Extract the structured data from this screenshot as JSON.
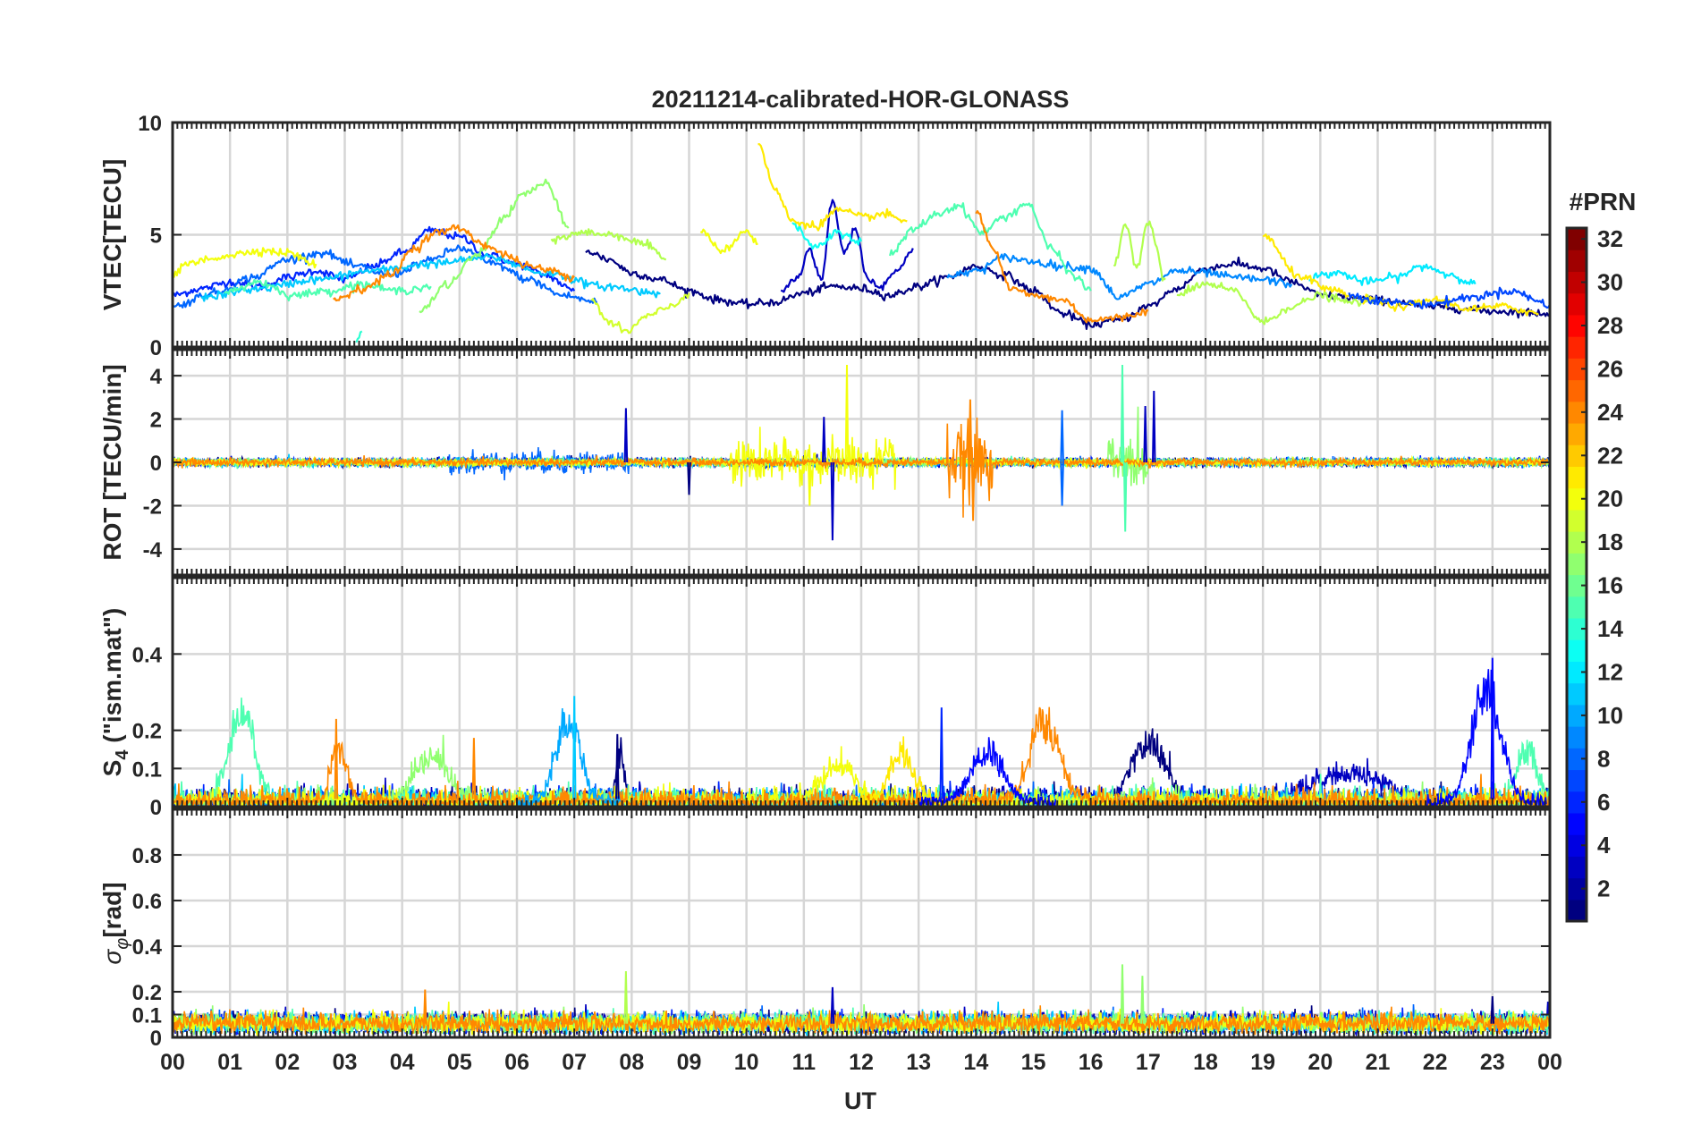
{
  "chart_data": {
    "type": "line",
    "title": "20211214-calibrated-HOR-GLONASS",
    "xlabel": "UT",
    "xlim": [
      0,
      24
    ],
    "x_tick_labels": [
      "00",
      "01",
      "02",
      "03",
      "04",
      "05",
      "06",
      "07",
      "08",
      "09",
      "10",
      "11",
      "12",
      "13",
      "14",
      "15",
      "16",
      "17",
      "18",
      "19",
      "20",
      "21",
      "22",
      "23",
      "00"
    ],
    "grid": true,
    "colorbar": {
      "label": "#PRN",
      "range": [
        1,
        32
      ],
      "colormap": "jet",
      "tick_labels": [
        "2",
        "4",
        "6",
        "8",
        "10",
        "12",
        "14",
        "16",
        "18",
        "20",
        "22",
        "24",
        "26",
        "28",
        "30",
        "32"
      ],
      "placement": "right"
    },
    "panels": [
      {
        "id": "vtec",
        "ylabel": "VTEC[TECU]",
        "ylim": [
          0,
          10
        ],
        "y_ticks": [
          0,
          5,
          10
        ],
        "y_tick_labels": [
          "0",
          "5",
          "10"
        ],
        "tracks": [
          {
            "prn": 6,
            "x": [
              0.0,
              0.5,
              1.0,
              1.5,
              2.0,
              2.5,
              3.0,
              3.5,
              4.0,
              4.5,
              5.0,
              5.5,
              6.0,
              6.5,
              7.0
            ],
            "y": [
              2.3,
              2.6,
              2.9,
              2.7,
              3.1,
              3.4,
              3.0,
              3.6,
              4.2,
              5.2,
              4.9,
              4.1,
              3.7,
              3.2,
              2.5
            ]
          },
          {
            "prn": 1,
            "x": [
              7.2,
              7.6,
              8.0,
              8.5,
              9.0,
              9.5,
              10.0,
              10.5,
              11.0,
              11.5,
              12.0,
              12.5,
              13.0,
              13.5,
              14.0,
              14.5,
              15.0,
              15.5,
              16.0,
              16.5,
              17.0,
              17.5,
              18.0,
              18.5,
              19.0,
              19.5,
              20.0,
              21.0,
              22.0,
              23.0,
              24.0
            ],
            "y": [
              4.3,
              3.9,
              3.3,
              3.0,
              2.5,
              2.1,
              1.9,
              2.0,
              2.4,
              2.7,
              2.6,
              2.3,
              2.7,
              3.1,
              3.6,
              3.2,
              2.5,
              1.5,
              1.0,
              1.2,
              1.8,
              2.6,
              3.5,
              3.7,
              3.5,
              2.9,
              2.3,
              2.1,
              1.8,
              1.6,
              1.5
            ]
          },
          {
            "prn": 8,
            "x": [
              0.0,
              0.7,
              1.4,
              2.0,
              2.6,
              3.2,
              3.8,
              4.4,
              5.0,
              5.6,
              6.2,
              6.8,
              7.4
            ],
            "y": [
              1.8,
              2.4,
              3.1,
              3.9,
              4.2,
              3.6,
              3.2,
              3.8,
              4.4,
              3.7,
              3.0,
              2.3,
              2.0
            ]
          },
          {
            "prn": 3,
            "x": [
              10.6,
              10.9,
              11.1,
              11.3,
              11.5,
              11.7,
              11.9,
              12.1,
              12.3,
              12.6,
              12.9
            ],
            "y": [
              2.5,
              3.1,
              4.4,
              3.0,
              6.5,
              4.2,
              5.3,
              3.1,
              2.7,
              3.3,
              4.4
            ]
          },
          {
            "prn": 9,
            "x": [
              13.5,
              14.0,
              14.5,
              15.0,
              15.5,
              16.0,
              16.5,
              17.0,
              17.5,
              18.0,
              18.5,
              19.0,
              19.5
            ],
            "y": [
              3.1,
              3.4,
              4.0,
              3.8,
              3.6,
              3.5,
              2.2,
              2.8,
              3.4,
              3.3,
              3.1,
              3.0,
              2.8
            ]
          },
          {
            "prn": 11,
            "x": [
              0.5,
              1.5,
              2.5,
              3.5,
              4.5,
              5.5,
              6.5,
              7.5,
              8.5
            ],
            "y": [
              2.2,
              2.6,
              3.0,
              3.4,
              3.7,
              4.0,
              3.3,
              2.7,
              2.4
            ]
          },
          {
            "prn": 12,
            "x": [
              19.8,
              20.3,
              20.8,
              21.3,
              21.8,
              22.3,
              22.7
            ],
            "y": [
              3.1,
              3.3,
              2.9,
              3.1,
              3.6,
              3.2,
              2.8
            ]
          },
          {
            "prn": 13,
            "x": [
              10.8,
              11.2,
              11.6,
              12.0
            ],
            "y": [
              5.5,
              4.4,
              5.1,
              4.7
            ]
          },
          {
            "prn": 15,
            "x": [
              0.9,
              1.5,
              2.1,
              2.7,
              3.3,
              3.9,
              4.5
            ],
            "y": [
              2.4,
              2.9,
              2.3,
              2.5,
              2.8,
              2.5,
              2.7
            ]
          },
          {
            "prn": 15,
            "x": [
              12.5,
              12.9,
              13.3,
              13.7,
              14.1,
              14.5,
              14.9,
              15.3,
              15.7,
              16.0
            ],
            "y": [
              4.1,
              5.2,
              5.9,
              6.3,
              5.1,
              5.8,
              6.4,
              4.4,
              3.2,
              2.5
            ]
          },
          {
            "prn": 17,
            "x": [
              4.3,
              4.8,
              5.3,
              5.8,
              6.1,
              6.5,
              6.9
            ],
            "y": [
              1.6,
              2.8,
              4.1,
              5.8,
              6.8,
              7.3,
              5.3
            ]
          },
          {
            "prn": 18,
            "x": [
              6.6,
              7.2,
              7.7,
              8.2,
              8.6
            ],
            "y": [
              4.8,
              5.1,
              5.0,
              4.6,
              3.9
            ]
          },
          {
            "prn": 18,
            "x": [
              16.4,
              16.6,
              16.8,
              17.0,
              17.3
            ],
            "y": [
              3.6,
              5.5,
              3.6,
              5.6,
              3.0
            ]
          },
          {
            "prn": 19,
            "x": [
              7.3,
              7.6,
              7.9,
              8.3,
              8.7,
              9.0
            ],
            "y": [
              2.1,
              1.1,
              0.7,
              1.4,
              1.8,
              2.4
            ]
          },
          {
            "prn": 18,
            "x": [
              17.5,
              18.0,
              18.5,
              19.0,
              19.5,
              20.0,
              20.5,
              21.0
            ],
            "y": [
              2.3,
              2.8,
              2.5,
              1.1,
              1.8,
              2.3,
              2.0,
              2.1
            ]
          },
          {
            "prn": 20,
            "x": [
              0.0,
              0.3,
              0.6,
              1.0,
              1.5,
              2.0,
              2.5
            ],
            "y": [
              3.3,
              3.7,
              3.9,
              4.1,
              4.3,
              4.2,
              3.7
            ]
          },
          {
            "prn": 20,
            "x": [
              9.2,
              9.6,
              10.0,
              10.2
            ],
            "y": [
              5.1,
              4.3,
              5.2,
              4.6
            ]
          },
          {
            "prn": 21,
            "x": [
              10.2,
              10.5,
              10.8,
              11.2,
              11.6,
              12.0,
              12.4,
              12.8
            ],
            "y": [
              9.1,
              7.0,
              5.6,
              5.4,
              6.1,
              5.8,
              5.9,
              5.6
            ]
          },
          {
            "prn": 21,
            "x": [
              19.0,
              19.6,
              20.2,
              20.8,
              21.4,
              22.0,
              22.6,
              23.2,
              23.8
            ],
            "y": [
              5.0,
              3.2,
              2.5,
              2.1,
              1.8,
              2.1,
              1.7,
              1.8,
              1.5
            ]
          },
          {
            "prn": 24,
            "x": [
              2.8,
              3.3,
              3.8,
              4.2,
              4.6,
              5.0,
              5.4,
              5.8,
              6.2,
              6.6,
              7.0
            ],
            "y": [
              2.1,
              2.6,
              3.2,
              4.4,
              5.1,
              5.3,
              4.6,
              4.1,
              3.6,
              3.4,
              3.1
            ]
          },
          {
            "prn": 24,
            "x": [
              14.0,
              14.3,
              14.6,
              15.0,
              15.5,
              16.0,
              16.5,
              17.0
            ],
            "y": [
              6.1,
              4.4,
              2.6,
              2.3,
              2.1,
              1.2,
              1.3,
              1.6
            ]
          },
          {
            "prn": 14,
            "x": [
              3.2,
              3.3
            ],
            "y": [
              0.2,
              0.7
            ]
          },
          {
            "prn": 7,
            "x": [
              20.5,
              21.2,
              21.9,
              22.6,
              23.3,
              24.0
            ],
            "y": [
              2.3,
              2.0,
              1.9,
              2.2,
              2.5,
              1.9
            ]
          }
        ]
      },
      {
        "id": "rot",
        "ylabel": "ROT [TECU/min]",
        "ylim": [
          -5.2,
          5.2
        ],
        "y_ticks": [
          -4,
          -2,
          0,
          2,
          4
        ],
        "y_tick_labels": [
          "-4",
          "-2",
          "0",
          "2",
          "4"
        ],
        "base_noise": 0.15,
        "colors_prn": [
          1,
          3,
          6,
          8,
          11,
          15,
          17,
          20,
          24
        ],
        "bursts": [
          {
            "prn": 20,
            "from": 9.7,
            "to": 12.6,
            "amp": 0.9
          },
          {
            "prn": 24,
            "from": 13.5,
            "to": 14.3,
            "amp": 1.4
          },
          {
            "prn": 17,
            "from": 16.3,
            "to": 17.0,
            "amp": 1.0
          },
          {
            "prn": 8,
            "from": 4.8,
            "to": 8.0,
            "amp": 0.45
          }
        ],
        "spikes": [
          {
            "prn": 3,
            "x": 7.9,
            "y": 2.5
          },
          {
            "prn": 3,
            "x": 11.5,
            "y": -3.6
          },
          {
            "prn": 3,
            "x": 11.35,
            "y": 2.1
          },
          {
            "prn": 20,
            "x": 11.1,
            "y": -2.0
          },
          {
            "prn": 20,
            "x": 11.75,
            "y": 4.5
          },
          {
            "prn": 24,
            "x": 13.9,
            "y": 2.9
          },
          {
            "prn": 24,
            "x": 13.95,
            "y": -2.7
          },
          {
            "prn": 15,
            "x": 16.55,
            "y": 4.5
          },
          {
            "prn": 15,
            "x": 16.6,
            "y": -3.2
          },
          {
            "prn": 3,
            "x": 17.1,
            "y": 3.3
          },
          {
            "prn": 3,
            "x": 16.95,
            "y": 2.6
          },
          {
            "prn": 8,
            "x": 15.5,
            "y": 2.4
          },
          {
            "prn": 8,
            "x": 15.5,
            "y": -2.0
          },
          {
            "prn": 1,
            "x": 9.0,
            "y": -1.5
          }
        ]
      },
      {
        "id": "s4",
        "ylabel": "S4 (\"ism.mat\")",
        "ylim": [
          0,
          0.6
        ],
        "y_ticks": [
          0,
          0.1,
          0.2,
          0.4
        ],
        "y_tick_labels": [
          "0",
          "0.1",
          "0.2",
          "0.4"
        ],
        "base_noise": 0.02,
        "bumps": [
          {
            "prn": 15,
            "center": 1.2,
            "width": 0.3,
            "peak": 0.24
          },
          {
            "prn": 24,
            "center": 2.9,
            "width": 0.2,
            "peak": 0.13
          },
          {
            "prn": 17,
            "center": 4.5,
            "width": 0.4,
            "peak": 0.12
          },
          {
            "prn": 10,
            "center": 6.9,
            "width": 0.3,
            "peak": 0.22
          },
          {
            "prn": 1,
            "center": 7.8,
            "width": 0.1,
            "peak": 0.12
          },
          {
            "prn": 20,
            "center": 11.6,
            "width": 0.4,
            "peak": 0.09
          },
          {
            "prn": 21,
            "center": 12.7,
            "width": 0.3,
            "peak": 0.13
          },
          {
            "prn": 5,
            "center": 14.2,
            "width": 0.4,
            "peak": 0.13
          },
          {
            "prn": 24,
            "center": 15.2,
            "width": 0.35,
            "peak": 0.21
          },
          {
            "prn": 1,
            "center": 17.0,
            "width": 0.4,
            "peak": 0.16
          },
          {
            "prn": 3,
            "center": 20.5,
            "width": 0.9,
            "peak": 0.07
          },
          {
            "prn": 5,
            "center": 22.9,
            "width": 0.35,
            "peak": 0.3
          },
          {
            "prn": 15,
            "center": 23.6,
            "width": 0.25,
            "peak": 0.13
          }
        ],
        "spikes": [
          {
            "prn": 24,
            "x": 2.85,
            "y": 0.23
          },
          {
            "prn": 24,
            "x": 5.25,
            "y": 0.18
          },
          {
            "prn": 11,
            "x": 7.0,
            "y": 0.29
          },
          {
            "prn": 6,
            "x": 13.4,
            "y": 0.26
          },
          {
            "prn": 5,
            "x": 23.0,
            "y": 0.39
          },
          {
            "prn": 1,
            "x": 7.75,
            "y": 0.19
          }
        ]
      },
      {
        "id": "sigma_phi",
        "ylabel": "σφ[rad]",
        "ylim": [
          0,
          1.0
        ],
        "y_ticks": [
          0,
          0.1,
          0.2,
          0.4,
          0.6,
          0.8
        ],
        "y_tick_labels": [
          "0",
          "0.1",
          "0.2",
          "0.4",
          "0.6",
          "0.8"
        ],
        "base_level": 0.06,
        "base_noise": 0.05,
        "spikes": [
          {
            "prn": 18,
            "x": 7.9,
            "y": 0.29
          },
          {
            "prn": 17,
            "x": 16.55,
            "y": 0.32
          },
          {
            "prn": 24,
            "x": 4.4,
            "y": 0.21
          },
          {
            "prn": 3,
            "x": 11.5,
            "y": 0.22
          },
          {
            "prn": 1,
            "x": 23.0,
            "y": 0.18
          },
          {
            "prn": 17,
            "x": 16.9,
            "y": 0.27
          }
        ]
      }
    ]
  }
}
